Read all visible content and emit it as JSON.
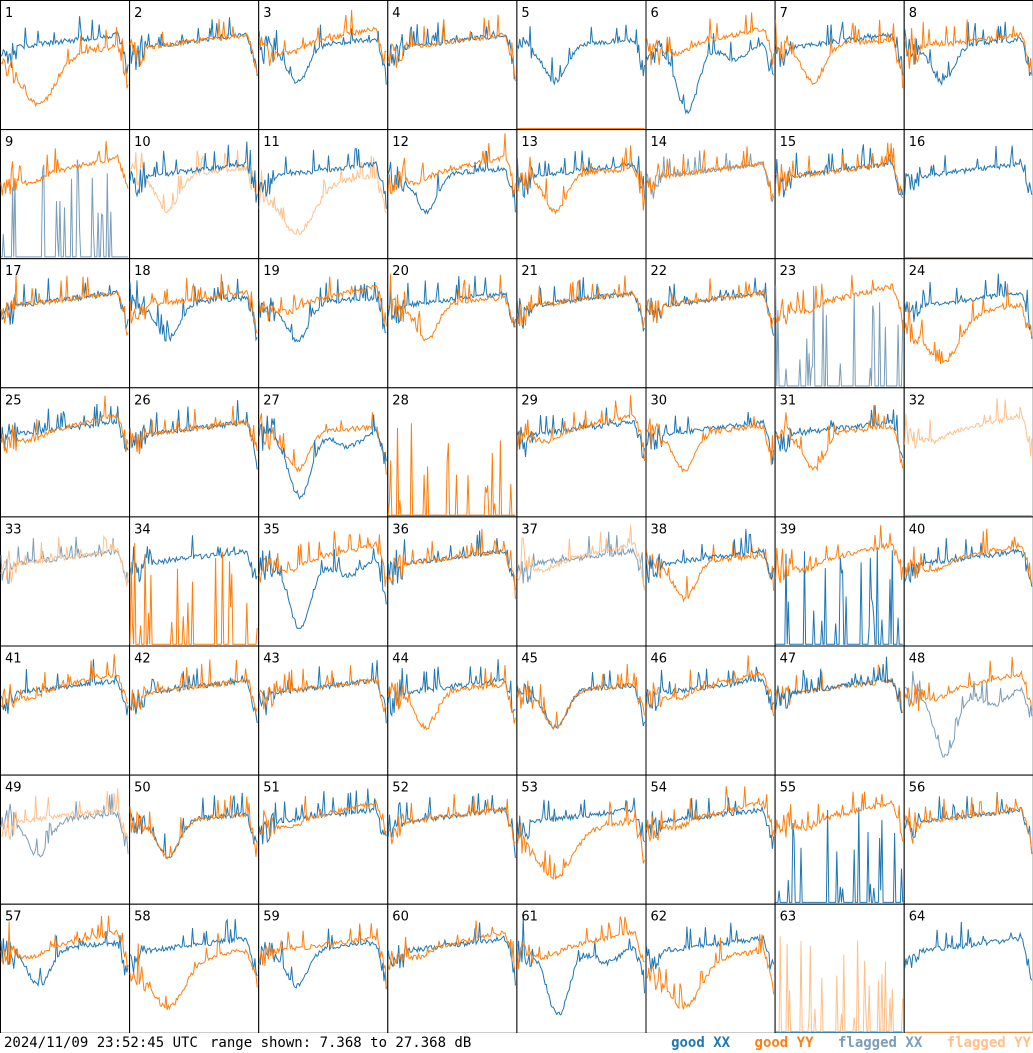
{
  "footer": {
    "timestamp": "2024/11/09 23:52:45 UTC",
    "range_text": "range shown: 7.368 to 27.368 dB"
  },
  "legend": [
    {
      "label": "good XX",
      "color": "#1f77b4"
    },
    {
      "label": "good YY",
      "color": "#ff7f0e"
    },
    {
      "label": "flagged XX",
      "color": "#7a9db9"
    },
    {
      "label": "flagged YY",
      "color": "#ffc08a"
    }
  ],
  "chart_data": {
    "type": "line",
    "layout": "small-multiples 8x8",
    "ylim": [
      7.368,
      27.368
    ],
    "units": "dB",
    "panels": [
      {
        "label": "1",
        "xx": "good",
        "yy": "good",
        "xx_shape": "flat",
        "yy_shape": "lowdip",
        "front": "yy"
      },
      {
        "label": "2",
        "xx": "good",
        "yy": "good",
        "xx_shape": "flat",
        "yy_shape": "flat",
        "front": "yy"
      },
      {
        "label": "3",
        "xx": "good",
        "yy": "good",
        "xx_shape": "dip",
        "yy_shape": "rise",
        "front": "yy"
      },
      {
        "label": "4",
        "xx": "good",
        "yy": "good",
        "xx_shape": "flat",
        "yy_shape": "flat",
        "front": "yy"
      },
      {
        "label": "5",
        "xx": "good",
        "yy": "good",
        "xx_shape": "dip",
        "yy_shape": "bottom",
        "front": "xx"
      },
      {
        "label": "6",
        "xx": "good",
        "yy": "good",
        "xx_shape": "bigdip",
        "yy_shape": "rise",
        "front": "yy"
      },
      {
        "label": "7",
        "xx": "good",
        "yy": "good",
        "xx_shape": "flat",
        "yy_shape": "dip",
        "front": "yy"
      },
      {
        "label": "8",
        "xx": "good",
        "yy": "good",
        "xx_shape": "dip",
        "yy_shape": "flat",
        "front": "yy"
      },
      {
        "label": "9",
        "xx": "flagged",
        "yy": "good",
        "xx_shape": "spikes",
        "yy_shape": "rise",
        "front": "yy"
      },
      {
        "label": "10",
        "xx": "good",
        "yy": "flagged",
        "xx_shape": "flat",
        "yy_shape": "dip",
        "front": "xx"
      },
      {
        "label": "11",
        "xx": "good",
        "yy": "flagged",
        "xx_shape": "flat",
        "yy_shape": "lowdip",
        "front": "xx"
      },
      {
        "label": "12",
        "xx": "good",
        "yy": "good",
        "xx_shape": "dip",
        "yy_shape": "rise",
        "front": "yy"
      },
      {
        "label": "13",
        "xx": "good",
        "yy": "good",
        "xx_shape": "flat",
        "yy_shape": "dip",
        "front": "yy"
      },
      {
        "label": "14",
        "xx": "flagged",
        "yy": "good",
        "xx_shape": "flat",
        "yy_shape": "flat",
        "front": "yy"
      },
      {
        "label": "15",
        "xx": "good",
        "yy": "good",
        "xx_shape": "flat",
        "yy_shape": "flat",
        "front": "yy"
      },
      {
        "label": "16",
        "xx": "good",
        "yy": "good",
        "xx_shape": "flat",
        "yy_shape": "bottom",
        "front": "xx"
      },
      {
        "label": "17",
        "xx": "good",
        "yy": "good",
        "xx_shape": "flat",
        "yy_shape": "flat",
        "front": "yy"
      },
      {
        "label": "18",
        "xx": "good",
        "yy": "good",
        "xx_shape": "dip",
        "yy_shape": "flat",
        "front": "yy"
      },
      {
        "label": "19",
        "xx": "good",
        "yy": "good",
        "xx_shape": "dip",
        "yy_shape": "rise",
        "front": "yy"
      },
      {
        "label": "20",
        "xx": "good",
        "yy": "good",
        "xx_shape": "flat",
        "yy_shape": "dip",
        "front": "yy"
      },
      {
        "label": "21",
        "xx": "good",
        "yy": "good",
        "xx_shape": "flat",
        "yy_shape": "flat",
        "front": "yy"
      },
      {
        "label": "22",
        "xx": "good",
        "yy": "good",
        "xx_shape": "flat",
        "yy_shape": "flat",
        "front": "yy"
      },
      {
        "label": "23",
        "xx": "flagged",
        "yy": "good",
        "xx_shape": "spikes",
        "yy_shape": "rise",
        "front": "yy"
      },
      {
        "label": "24",
        "xx": "good",
        "yy": "good",
        "xx_shape": "flat",
        "yy_shape": "lowdip",
        "front": "yy"
      },
      {
        "label": "25",
        "xx": "good",
        "yy": "good",
        "xx_shape": "flat",
        "yy_shape": "rise",
        "front": "yy"
      },
      {
        "label": "26",
        "xx": "good",
        "yy": "good",
        "xx_shape": "flat",
        "yy_shape": "flat",
        "front": "yy"
      },
      {
        "label": "27",
        "xx": "good",
        "yy": "good",
        "xx_shape": "bigdip",
        "yy_shape": "dip",
        "front": "xx"
      },
      {
        "label": "28",
        "xx": "good",
        "yy": "good",
        "xx_shape": "bottom",
        "yy_shape": "spikes",
        "front": "yy"
      },
      {
        "label": "29",
        "xx": "good",
        "yy": "good",
        "xx_shape": "flat",
        "yy_shape": "rise",
        "front": "yy"
      },
      {
        "label": "30",
        "xx": "good",
        "yy": "good",
        "xx_shape": "flat",
        "yy_shape": "dip",
        "front": "yy"
      },
      {
        "label": "31",
        "xx": "good",
        "yy": "good",
        "xx_shape": "flat",
        "yy_shape": "dip",
        "front": "yy"
      },
      {
        "label": "32",
        "xx": "flagged",
        "yy": "flagged",
        "xx_shape": "bottom",
        "yy_shape": "rise",
        "front": "yy"
      },
      {
        "label": "33",
        "xx": "flagged",
        "yy": "flagged",
        "xx_shape": "flat",
        "yy_shape": "flat",
        "front": "yy"
      },
      {
        "label": "34",
        "xx": "good",
        "yy": "good",
        "xx_shape": "flat",
        "yy_shape": "spikes",
        "front": "yy"
      },
      {
        "label": "35",
        "xx": "good",
        "yy": "good",
        "xx_shape": "bigdip",
        "yy_shape": "rise",
        "front": "yy"
      },
      {
        "label": "36",
        "xx": "good",
        "yy": "good",
        "xx_shape": "flat",
        "yy_shape": "flat",
        "front": "yy"
      },
      {
        "label": "37",
        "xx": "flagged",
        "yy": "flagged",
        "xx_shape": "flat",
        "yy_shape": "rise",
        "front": "yy"
      },
      {
        "label": "38",
        "xx": "good",
        "yy": "good",
        "xx_shape": "flat",
        "yy_shape": "dip",
        "front": "xx"
      },
      {
        "label": "39",
        "xx": "good",
        "yy": "good",
        "xx_shape": "spikes",
        "yy_shape": "rise",
        "front": "yy"
      },
      {
        "label": "40",
        "xx": "good",
        "yy": "good",
        "xx_shape": "flat",
        "yy_shape": "rise",
        "front": "yy"
      },
      {
        "label": "41",
        "xx": "good",
        "yy": "good",
        "xx_shape": "flat",
        "yy_shape": "rise",
        "front": "yy"
      },
      {
        "label": "42",
        "xx": "good",
        "yy": "good",
        "xx_shape": "flat",
        "yy_shape": "flat",
        "front": "yy"
      },
      {
        "label": "43",
        "xx": "good",
        "yy": "good",
        "xx_shape": "flat",
        "yy_shape": "flat",
        "front": "yy"
      },
      {
        "label": "44",
        "xx": "good",
        "yy": "good",
        "xx_shape": "flat",
        "yy_shape": "dip",
        "front": "yy"
      },
      {
        "label": "45",
        "xx": "good",
        "yy": "good",
        "xx_shape": "dip",
        "yy_shape": "dip",
        "front": "yy"
      },
      {
        "label": "46",
        "xx": "good",
        "yy": "good",
        "xx_shape": "flat",
        "yy_shape": "rise",
        "front": "yy"
      },
      {
        "label": "47",
        "xx": "good",
        "yy": "good",
        "xx_shape": "flat",
        "yy_shape": "flat",
        "front": "xx"
      },
      {
        "label": "48",
        "xx": "flagged",
        "yy": "good",
        "xx_shape": "bigdip",
        "yy_shape": "rise",
        "front": "yy"
      },
      {
        "label": "49",
        "xx": "flagged",
        "yy": "flagged",
        "xx_shape": "dip",
        "yy_shape": "flat",
        "front": "yy"
      },
      {
        "label": "50",
        "xx": "good",
        "yy": "good",
        "xx_shape": "dip",
        "yy_shape": "dip",
        "front": "yy"
      },
      {
        "label": "51",
        "xx": "good",
        "yy": "good",
        "xx_shape": "flat",
        "yy_shape": "rise",
        "front": "yy"
      },
      {
        "label": "52",
        "xx": "good",
        "yy": "good",
        "xx_shape": "flat",
        "yy_shape": "flat",
        "front": "yy"
      },
      {
        "label": "53",
        "xx": "good",
        "yy": "good",
        "xx_shape": "flat",
        "yy_shape": "lowdip",
        "front": "yy"
      },
      {
        "label": "54",
        "xx": "good",
        "yy": "good",
        "xx_shape": "flat",
        "yy_shape": "rise",
        "front": "yy"
      },
      {
        "label": "55",
        "xx": "good",
        "yy": "good",
        "xx_shape": "spikes",
        "yy_shape": "rise",
        "front": "yy"
      },
      {
        "label": "56",
        "xx": "good",
        "yy": "good",
        "xx_shape": "flat",
        "yy_shape": "flat",
        "front": "yy"
      },
      {
        "label": "57",
        "xx": "good",
        "yy": "good",
        "xx_shape": "dip",
        "yy_shape": "rise",
        "front": "yy"
      },
      {
        "label": "58",
        "xx": "good",
        "yy": "good",
        "xx_shape": "flat",
        "yy_shape": "lowdip",
        "front": "yy"
      },
      {
        "label": "59",
        "xx": "good",
        "yy": "good",
        "xx_shape": "dip",
        "yy_shape": "flat",
        "front": "yy"
      },
      {
        "label": "60",
        "xx": "good",
        "yy": "good",
        "xx_shape": "flat",
        "yy_shape": "rise",
        "front": "yy"
      },
      {
        "label": "61",
        "xx": "good",
        "yy": "good",
        "xx_shape": "bigdip",
        "yy_shape": "rise",
        "front": "yy"
      },
      {
        "label": "62",
        "xx": "good",
        "yy": "good",
        "xx_shape": "flat",
        "yy_shape": "lowdip",
        "front": "yy"
      },
      {
        "label": "63",
        "xx": "good",
        "yy": "flagged",
        "xx_shape": "bottom",
        "yy_shape": "spikes",
        "front": "xx"
      },
      {
        "label": "64",
        "xx": "good",
        "yy": "good",
        "xx_shape": "flat",
        "yy_shape": "bottom",
        "front": "xx"
      }
    ]
  }
}
